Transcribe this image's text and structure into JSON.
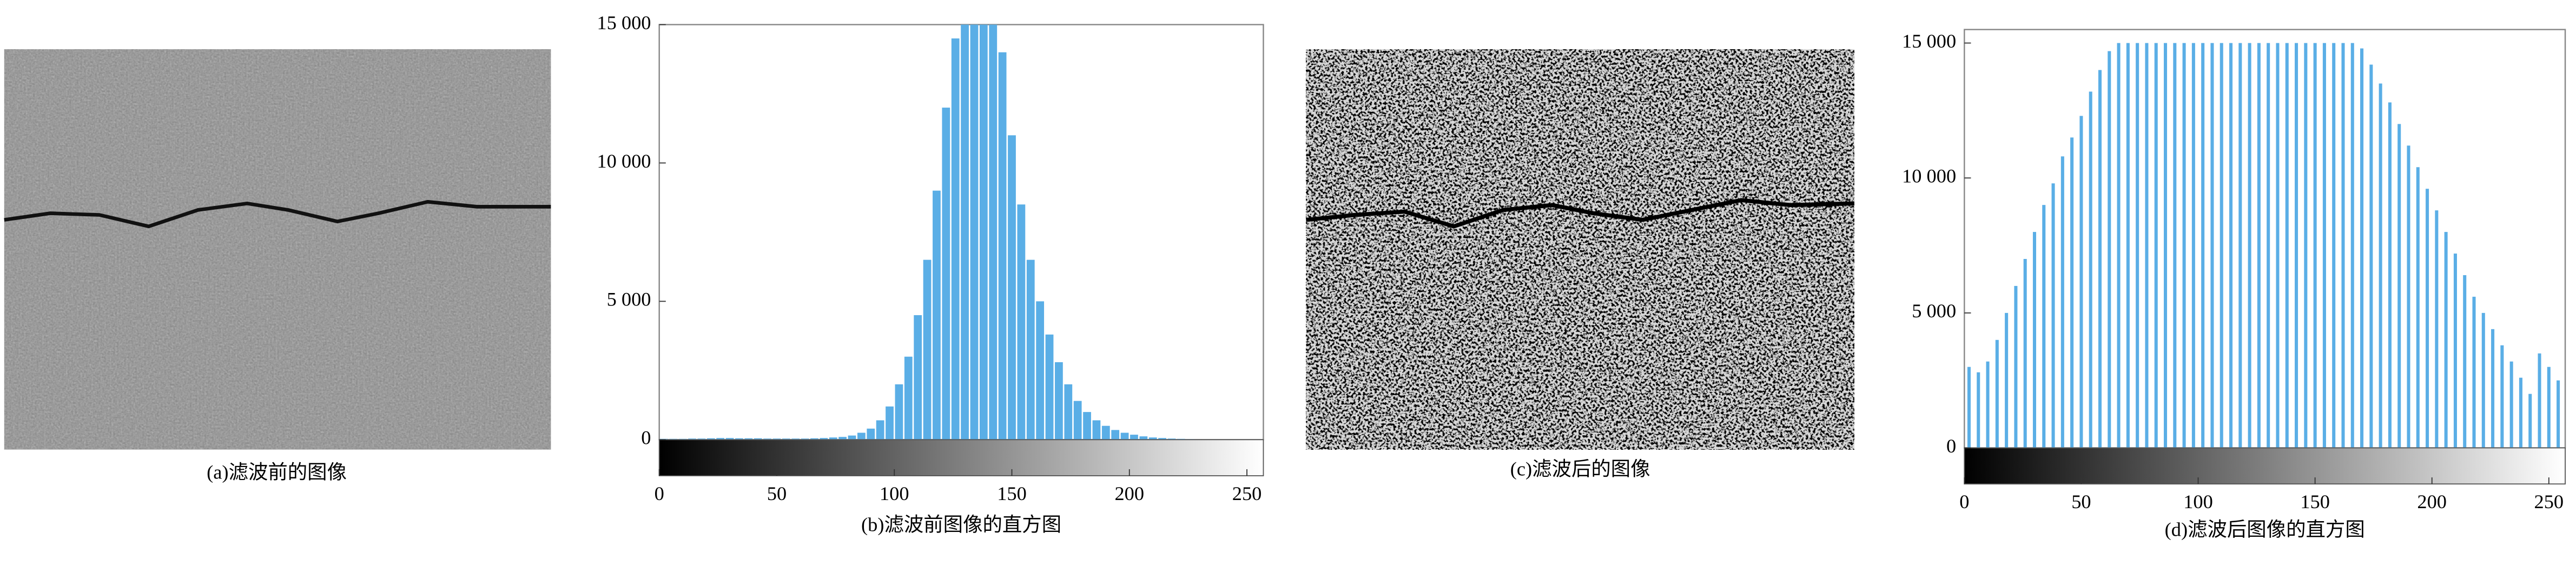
{
  "images": [
    {
      "caption": "(a)滤波前的图像"
    },
    {
      "caption": "(c)滤波后的图像"
    }
  ],
  "chart_data": [
    {
      "type": "histogram",
      "title": "(b)滤波前图像的直方图",
      "color": "#5aaee6",
      "bins": [
        0,
        4,
        8,
        12,
        16,
        20,
        24,
        28,
        32,
        36,
        40,
        44,
        48,
        52,
        56,
        60,
        64,
        68,
        72,
        76,
        80,
        84,
        88,
        92,
        96,
        100,
        104,
        108,
        112,
        116,
        120,
        124,
        128,
        132,
        136,
        140,
        144,
        148,
        152,
        156,
        160,
        164,
        168,
        172,
        176,
        180,
        184,
        188,
        192,
        196,
        200,
        204,
        208,
        212,
        216,
        220,
        224,
        228,
        232,
        236,
        240,
        244,
        248,
        252,
        256
      ],
      "values": [
        30,
        30,
        30,
        40,
        40,
        50,
        60,
        60,
        50,
        50,
        50,
        40,
        40,
        40,
        40,
        40,
        50,
        60,
        80,
        100,
        150,
        250,
        400,
        700,
        1200,
        2000,
        3000,
        4500,
        6500,
        9000,
        12000,
        14500,
        15000,
        15000,
        15000,
        15000,
        14000,
        11000,
        8500,
        6500,
        5000,
        3800,
        2800,
        2000,
        1400,
        1000,
        700,
        500,
        350,
        250,
        180,
        120,
        80,
        60,
        40,
        30,
        20,
        15,
        10,
        10,
        5,
        5,
        5,
        5
      ],
      "xlim": [
        0,
        257
      ],
      "xticks": [
        0,
        50,
        100,
        150,
        200,
        250
      ],
      "ylim": [
        0,
        15000
      ],
      "yticks": [
        0,
        {
          "value": 5000,
          "label": "5 000"
        },
        {
          "value": 10000,
          "label": "10 000"
        },
        {
          "value": 15000,
          "label": "15 000"
        }
      ]
    },
    {
      "type": "histogram",
      "title": "(d)滤波后图像的直方图",
      "color": "#5aaee6",
      "bins": [
        0,
        4,
        8,
        12,
        16,
        20,
        24,
        28,
        32,
        36,
        40,
        44,
        48,
        52,
        56,
        60,
        64,
        68,
        72,
        76,
        80,
        84,
        88,
        92,
        96,
        100,
        104,
        108,
        112,
        116,
        120,
        124,
        128,
        132,
        136,
        140,
        144,
        148,
        152,
        156,
        160,
        164,
        168,
        172,
        176,
        180,
        184,
        188,
        192,
        196,
        200,
        204,
        208,
        212,
        216,
        220,
        224,
        228,
        232,
        236,
        240,
        244,
        248,
        252,
        256
      ],
      "values": [
        3000,
        2800,
        3200,
        4000,
        5000,
        6000,
        7000,
        8000,
        9000,
        9800,
        10800,
        11500,
        12300,
        13200,
        14000,
        14700,
        15000,
        15000,
        15000,
        15000,
        15000,
        15000,
        15000,
        15000,
        15000,
        15000,
        15000,
        15000,
        15000,
        15000,
        15000,
        15000,
        15000,
        15000,
        15000,
        15000,
        15000,
        15000,
        15000,
        15000,
        15000,
        15000,
        14800,
        14200,
        13500,
        12800,
        12000,
        11200,
        10400,
        9600,
        8800,
        8000,
        7200,
        6400,
        5600,
        5000,
        4400,
        3800,
        3200,
        2600,
        2000,
        3500,
        3000,
        2500
      ],
      "xlim": [
        0,
        257
      ],
      "xticks": [
        0,
        50,
        100,
        150,
        200,
        250
      ],
      "ylim": [
        0,
        15500
      ],
      "yticks": [
        0,
        {
          "value": 5000,
          "label": "5 000"
        },
        {
          "value": 10000,
          "label": "10 000"
        },
        {
          "value": 15000,
          "label": "15 000"
        }
      ]
    }
  ]
}
